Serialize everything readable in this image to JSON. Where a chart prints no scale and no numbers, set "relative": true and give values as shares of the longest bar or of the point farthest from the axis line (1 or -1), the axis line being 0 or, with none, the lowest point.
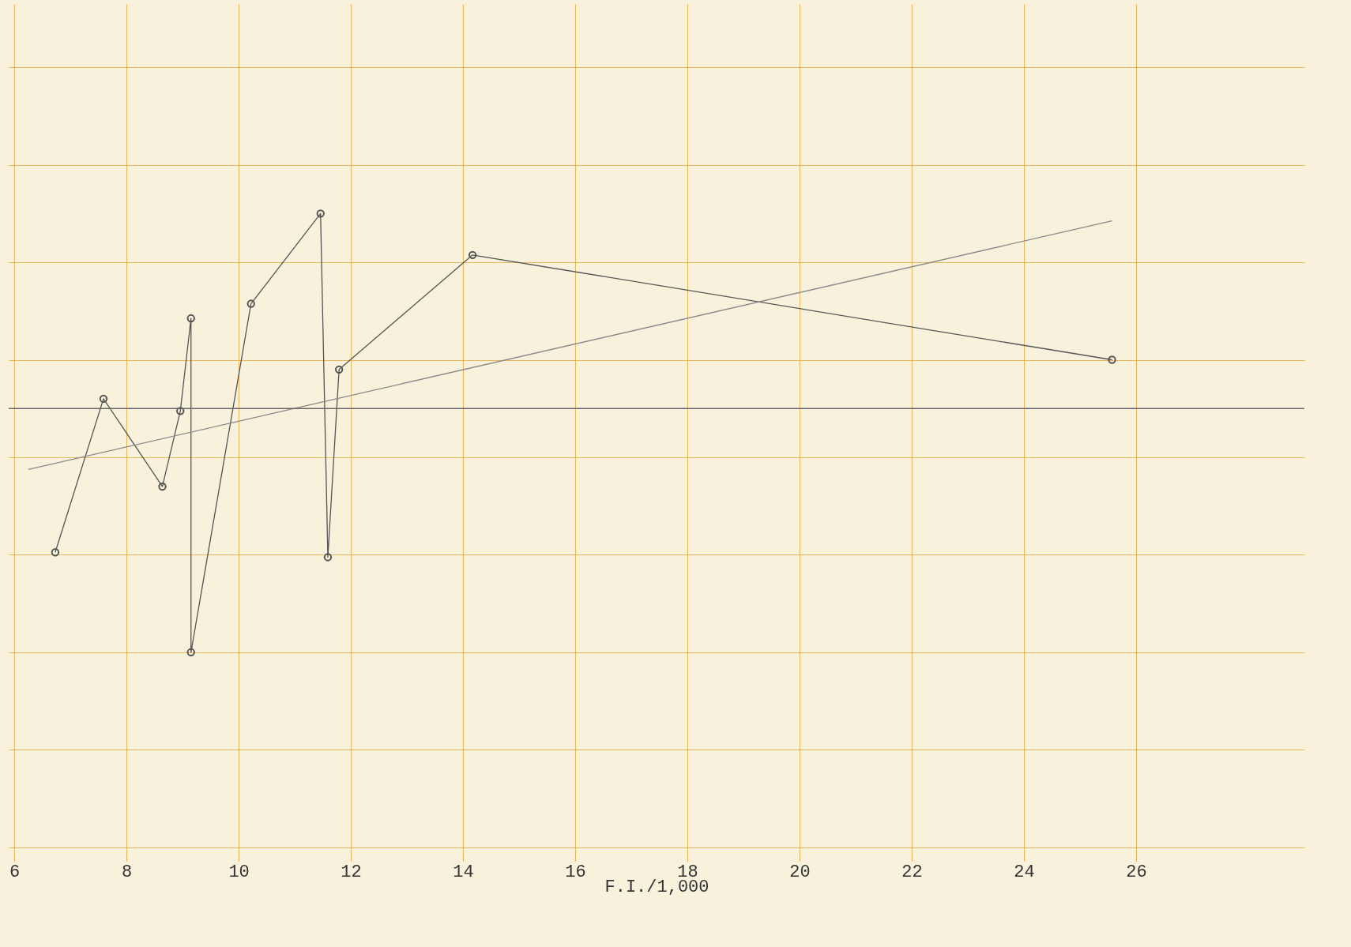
{
  "chart_data": {
    "type": "line",
    "xlabel": "F.I./1,000",
    "relative": true,
    "xlim": [
      5.9,
      29
    ],
    "xticks": [
      6,
      8,
      10,
      12,
      14,
      16,
      18,
      20,
      22,
      24,
      26
    ],
    "tick_labels": "x",
    "grid": true,
    "marker": "circle",
    "line_style": "solid",
    "series": [
      {
        "color": "#555555",
        "x": [
          6.73,
          7.59,
          8.64,
          8.96,
          9.15,
          9.15,
          10.22,
          11.46,
          11.59,
          11.79,
          14.17,
          25.57
        ],
        "values": [
          -0.59,
          0.04,
          -0.32,
          -0.01,
          0.37,
          -1,
          0.43,
          0.8,
          -0.61,
          0.16,
          0.63,
          0.2
        ]
      },
      {
        "type": "line",
        "color": "#8a8a8a",
        "marker": "none",
        "x": [
          6.25,
          25.57
        ],
        "values": [
          -0.25,
          0.77
        ]
      }
    ],
    "ref_lines": [
      {
        "axis": "y",
        "value": 0,
        "color": "#666666"
      }
    ]
  }
}
